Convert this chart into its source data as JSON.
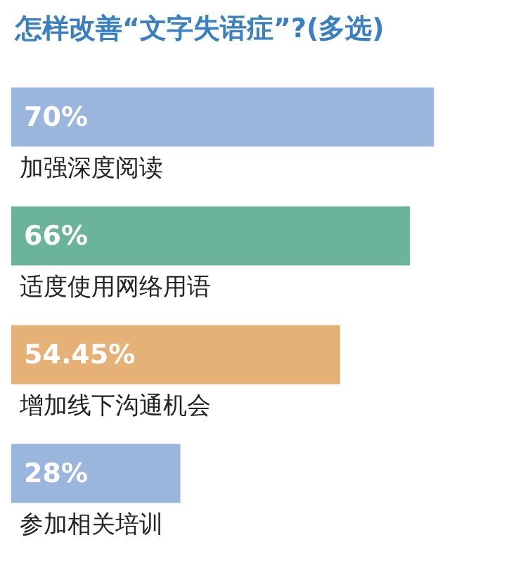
{
  "chart_data": {
    "type": "bar",
    "orientation": "horizontal",
    "tick_labels": false,
    "title": "怎样改善“文字失语症”?(多选)",
    "categories": [
      "加强深度阅读",
      "适度使用网络用语",
      "增加线下沟通机会",
      "参加相关培训"
    ],
    "values": [
      70,
      66,
      54.45,
      28
    ],
    "value_labels": [
      "70%",
      "66%",
      "54.45%",
      "28%"
    ],
    "colors": [
      "#9bb6dd",
      "#6bb39a",
      "#e5b176",
      "#9bb6dd"
    ]
  }
}
